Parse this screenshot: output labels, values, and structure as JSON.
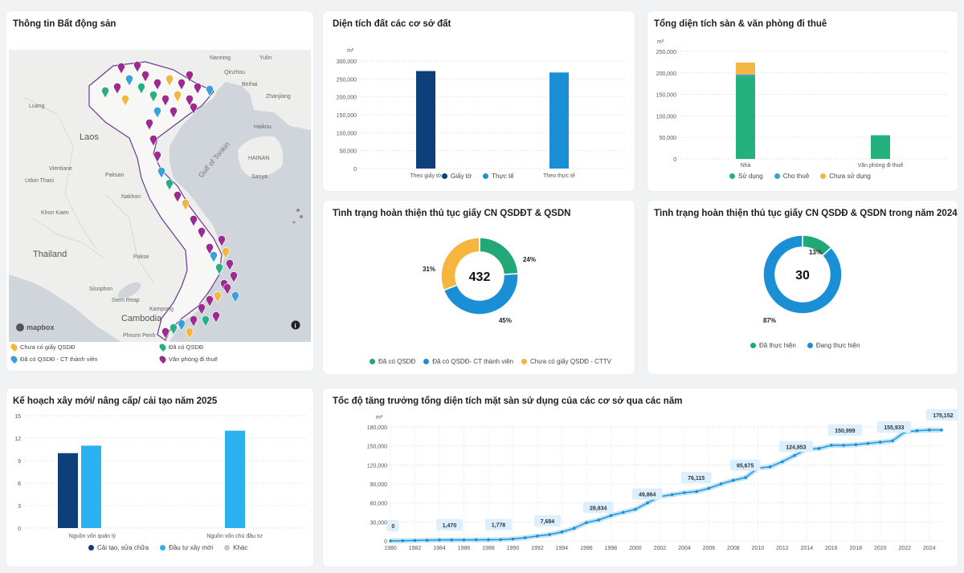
{
  "map_card": {
    "title": "Thông tin Bất động sản",
    "labels": {
      "laos": "Laos",
      "thailand": "Thailand",
      "cambodia": "Cambodia",
      "gulf": "Gulf of Tonkin",
      "hainan": "HAINAN",
      "sanya": "Sanya",
      "udon": "Udon Thani",
      "kon_kaen": "Khon Kaen",
      "siem_reap": "Siem Reap",
      "phnom_penh": "Phnom Penh",
      "luang": "Luang",
      "vientiane": "Vientiane",
      "paksan": "Paksan",
      "nakhon": "Nakhon",
      "pakse": "Pakse",
      "sisophon": "Sisophon",
      "kampong": "Kampong",
      "qinzhou": "Qinzhou",
      "zhanjiang": "Zhanjiang",
      "haikou": "Haikou",
      "beihai": "Beihai",
      "nanning": "Nanning",
      "yulin": "Yulin",
      "mapbox": "mapbox"
    },
    "legend": [
      {
        "label": "Chưa có giấy QSDĐ",
        "color": "#f4b63f"
      },
      {
        "label": "Đã có QSDĐ",
        "color": "#2bae85"
      },
      {
        "label": "Đã có QSDĐ - CT thành viên",
        "color": "#3ba0d8"
      },
      {
        "label": "Văn phòng đi thuê",
        "color": "#9b2b8f"
      }
    ]
  },
  "land_area": {
    "title": "Diện tích đất các cơ sở đất",
    "unit": "m²",
    "chart_data": {
      "type": "bar",
      "title": "Diện tích đất các cơ sở đất",
      "categories": [
        "Theo giấy tờ",
        "Theo thực tế"
      ],
      "series": [
        {
          "name": "Giấy tờ",
          "values": [
            272000,
            null
          ],
          "color": "#0d3f7a"
        },
        {
          "name": "Thực tế",
          "values": [
            null,
            268000
          ],
          "color": "#1a8fd6"
        }
      ],
      "yticks": [
        "300,000",
        "250,000",
        "200,000",
        "150,000",
        "100,000",
        "50,000",
        "0"
      ],
      "ylim": [
        0,
        300000
      ]
    },
    "legend": [
      {
        "label": "Giấy tờ",
        "color": "#0d3f7a"
      },
      {
        "label": "Thực tế",
        "color": "#1a8fd6"
      }
    ]
  },
  "floor_area": {
    "title": "Tổng diện tích sàn & văn phòng đi thuê",
    "unit": "m²",
    "chart_data": {
      "type": "bar",
      "stacked": true,
      "categories": [
        "Nhà",
        "Văn phòng đi thuê"
      ],
      "series": [
        {
          "name": "Sử dụng",
          "values": [
            192000,
            55000
          ],
          "color": "#22b07d"
        },
        {
          "name": "Cho thuê",
          "values": [
            4000,
            0
          ],
          "color": "#3ba0d8"
        },
        {
          "name": "Chưa sử dụng",
          "values": [
            28000,
            0
          ],
          "color": "#f4b63f"
        }
      ],
      "yticks": [
        "250,000",
        "200,000",
        "150,000",
        "100,000",
        "50,000",
        "0"
      ],
      "ylim": [
        0,
        250000
      ]
    },
    "legend": [
      {
        "label": "Sử dụng",
        "color": "#22b07d"
      },
      {
        "label": "Cho thuê",
        "color": "#3ba0d8"
      },
      {
        "label": "Chưa sử dụng",
        "color": "#f4b63f"
      }
    ]
  },
  "status_total": {
    "title": "Tình trạng hoàn thiện thủ tục giấy CN QSDĐT & QSDN",
    "center": "432",
    "chart_data": {
      "type": "pie",
      "donut": true,
      "labels": [
        "Đã có QSDĐ",
        "Đã có QSDĐ- CT thành viên",
        "Chưa có giấy QSDĐ - CTTV"
      ],
      "values": [
        24,
        45,
        31
      ],
      "value_labels": [
        "24%",
        "45%",
        "31%"
      ],
      "colors": [
        "#22a876",
        "#1a8fd6",
        "#f5b63e"
      ]
    },
    "legend": [
      {
        "label": "Đã có QSDĐ",
        "color": "#22a876"
      },
      {
        "label": "Đã có QSDĐ- CT thành viên",
        "color": "#1a8fd6"
      },
      {
        "label": "Chưa có giấy QSDĐ - CTTV",
        "color": "#f5b63e"
      }
    ]
  },
  "status_2024": {
    "title": "Tình trạng hoàn thiện thủ tục giấy CN QSDĐ & QSDN trong năm 2024",
    "center": "30",
    "chart_data": {
      "type": "pie",
      "donut": true,
      "labels": [
        "Đã thực hiện",
        "Đang thực hiện"
      ],
      "values": [
        13,
        87
      ],
      "value_labels": [
        "13%",
        "87%"
      ],
      "colors": [
        "#22a876",
        "#1a8fd6"
      ]
    },
    "legend": [
      {
        "label": "Đã thực hiện",
        "color": "#22a876"
      },
      {
        "label": "Đang thực hiện",
        "color": "#1a8fd6"
      }
    ]
  },
  "plan_2025": {
    "title": "Kế hoạch xây mới/ nâng cấp/ cải tạo năm 2025",
    "chart_data": {
      "type": "bar",
      "categories": [
        "Nguồn vốn quản lý",
        "Nguồn vốn chủ đầu tư"
      ],
      "series": [
        {
          "name": "Cải tạo, sửa chữa",
          "values": [
            10,
            0
          ],
          "color": "#0d3f7a"
        },
        {
          "name": "Đầu tư xây mới",
          "values": [
            11,
            13
          ],
          "color": "#29b1f0"
        },
        {
          "name": "Khác",
          "values": [
            0,
            0
          ],
          "color": "#c8c8c8"
        }
      ],
      "yticks": [
        "15",
        "12",
        "9",
        "6",
        "3",
        "0"
      ],
      "ylim": [
        0,
        15
      ]
    },
    "legend": [
      {
        "label": "Cải tạo, sửa chữa",
        "color": "#0d3f7a"
      },
      {
        "label": "Đầu tư xây mới",
        "color": "#29b1f0"
      },
      {
        "label": "Khác",
        "color": "#c8c8c8"
      }
    ]
  },
  "growth": {
    "title": "Tốc độ tăng trưởng tổng diện tích mặt sàn sử dụng của các cơ sở qua các năm",
    "unit": "m²",
    "chart_data": {
      "type": "line",
      "x": [
        1980,
        1981,
        1982,
        1983,
        1984,
        1985,
        1986,
        1987,
        1988,
        1989,
        1990,
        1991,
        1992,
        1993,
        1994,
        1995,
        1996,
        1997,
        1998,
        1999,
        2000,
        2001,
        2002,
        2003,
        2004,
        2005,
        2006,
        2007,
        2008,
        2009,
        2010,
        2011,
        2012,
        2013,
        2014,
        2015,
        2016,
        2017,
        2018,
        2019,
        2020,
        2021,
        2022,
        2023,
        2024,
        2025
      ],
      "y": [
        0,
        300,
        700,
        1000,
        1470,
        1500,
        1600,
        1700,
        1778,
        2000,
        3000,
        5000,
        7684,
        10000,
        14000,
        20000,
        28834,
        33000,
        40000,
        45000,
        49864,
        60000,
        70000,
        73000,
        76115,
        78000,
        83000,
        90000,
        95675,
        100000,
        115000,
        117000,
        124953,
        135000,
        145000,
        146000,
        150999,
        151000,
        152000,
        154000,
        155933,
        158000,
        172000,
        174000,
        175152,
        175152
      ],
      "annotations": [
        {
          "x": 1980,
          "label": "0"
        },
        {
          "x": 1984,
          "label": "1,470"
        },
        {
          "x": 1988,
          "label": "1,778"
        },
        {
          "x": 1992,
          "label": "7,684"
        },
        {
          "x": 1996,
          "label": "28,834"
        },
        {
          "x": 2000,
          "label": "49,864"
        },
        {
          "x": 2004,
          "label": "76,115"
        },
        {
          "x": 2008,
          "label": "95,675"
        },
        {
          "x": 2012,
          "label": "124,953"
        },
        {
          "x": 2016,
          "label": "150,999"
        },
        {
          "x": 2020,
          "label": "155,933"
        },
        {
          "x": 2024,
          "label": "175,152"
        }
      ],
      "xticks": [
        "1980",
        "1982",
        "1984",
        "1986",
        "1988",
        "1990",
        "1992",
        "1994",
        "1996",
        "1998",
        "2000",
        "2002",
        "2004",
        "2006",
        "2008",
        "2010",
        "2012",
        "2014",
        "2016",
        "2018",
        "2020",
        "2022",
        "2024"
      ],
      "yticks": [
        "180,000",
        "150,000",
        "120,000",
        "90,000",
        "60,000",
        "30,000",
        "0"
      ],
      "ylim": [
        0,
        180000
      ],
      "color": "#1a8fd6"
    }
  }
}
